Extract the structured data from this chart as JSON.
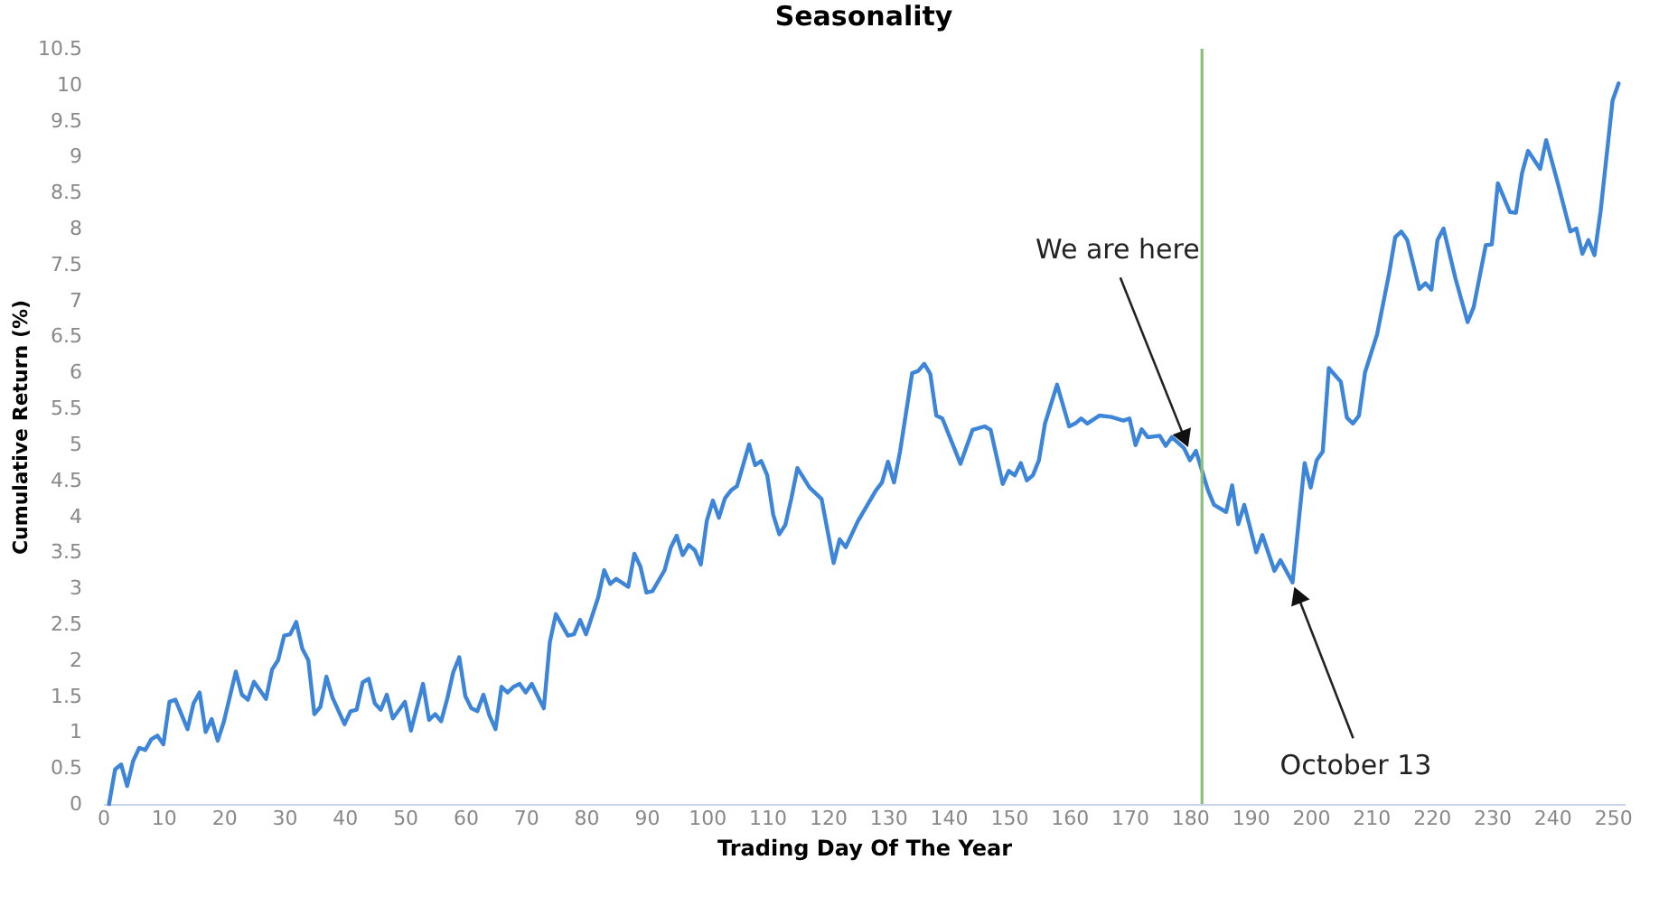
{
  "chart_data": {
    "type": "line",
    "title": "Seasonality",
    "xlabel": "Trading Day Of The Year",
    "ylabel": "Cumulative Return (%)",
    "x": [
      1,
      2,
      3,
      4,
      5,
      6,
      7,
      8,
      9,
      10,
      11,
      12,
      14,
      15,
      16,
      17,
      18,
      19,
      20,
      22,
      23,
      24,
      25,
      27,
      28,
      29,
      30,
      31,
      32,
      33,
      34,
      35,
      36,
      37,
      38,
      40,
      41,
      42,
      43,
      44,
      45,
      46,
      47,
      48,
      50,
      51,
      53,
      54,
      55,
      56,
      57,
      58,
      59,
      60,
      61,
      62,
      63,
      64,
      65,
      66,
      67,
      68,
      69,
      70,
      71,
      73,
      74,
      75,
      77,
      78,
      79,
      80,
      82,
      83,
      84,
      85,
      87,
      88,
      89,
      90,
      91,
      93,
      94,
      95,
      96,
      97,
      98,
      99,
      100,
      101,
      102,
      103,
      104,
      105,
      107,
      108,
      109,
      110,
      111,
      112,
      113,
      114,
      115,
      117,
      119,
      121,
      122,
      123,
      125,
      128,
      129,
      130,
      131,
      132,
      134,
      135,
      136,
      137,
      138,
      139,
      141,
      142,
      144,
      146,
      147,
      149,
      150,
      151,
      152,
      153,
      154,
      155,
      156,
      158,
      160,
      161,
      162,
      163,
      165,
      167,
      169,
      170,
      171,
      172,
      173,
      175,
      176,
      177,
      179,
      180,
      181,
      183,
      184,
      186,
      187,
      188,
      189,
      191,
      192,
      194,
      195,
      197,
      199,
      200,
      201,
      202,
      203,
      205,
      206,
      207,
      208,
      209,
      211,
      213,
      214,
      215,
      216,
      218,
      219,
      220,
      221,
      222,
      224,
      226,
      227,
      229,
      230,
      231,
      233,
      234,
      235,
      236,
      238,
      239,
      241,
      243,
      244,
      245,
      246,
      247,
      248,
      250,
      251
    ],
    "series": [
      {
        "color": "#3d85d8",
        "values": [
          0,
          0.48,
          0.55,
          0.25,
          0.6,
          0.78,
          0.75,
          0.9,
          0.95,
          0.83,
          1.42,
          1.45,
          1.04,
          1.4,
          1.55,
          1.0,
          1.18,
          0.88,
          1.14,
          1.84,
          1.52,
          1.45,
          1.7,
          1.46,
          1.87,
          2.0,
          2.34,
          2.36,
          2.53,
          2.16,
          2.0,
          1.25,
          1.35,
          1.77,
          1.48,
          1.11,
          1.29,
          1.31,
          1.69,
          1.74,
          1.4,
          1.31,
          1.52,
          1.19,
          1.42,
          1.02,
          1.67,
          1.17,
          1.25,
          1.15,
          1.46,
          1.83,
          2.04,
          1.5,
          1.33,
          1.29,
          1.52,
          1.23,
          1.04,
          1.63,
          1.55,
          1.63,
          1.67,
          1.55,
          1.67,
          1.33,
          2.25,
          2.64,
          2.34,
          2.36,
          2.56,
          2.36,
          2.87,
          3.25,
          3.06,
          3.13,
          3.02,
          3.48,
          3.3,
          2.94,
          2.96,
          3.25,
          3.56,
          3.73,
          3.46,
          3.6,
          3.53,
          3.33,
          3.94,
          4.22,
          3.98,
          4.25,
          4.36,
          4.42,
          5.0,
          4.71,
          4.77,
          4.57,
          4.02,
          3.75,
          3.88,
          4.25,
          4.67,
          4.4,
          4.24,
          3.35,
          3.68,
          3.57,
          3.93,
          4.36,
          4.47,
          4.76,
          4.47,
          4.9,
          5.99,
          6.02,
          6.12,
          5.98,
          5.4,
          5.36,
          4.94,
          4.73,
          5.2,
          5.25,
          5.2,
          4.45,
          4.63,
          4.57,
          4.74,
          4.5,
          4.57,
          4.78,
          5.29,
          5.83,
          5.25,
          5.29,
          5.36,
          5.29,
          5.4,
          5.38,
          5.33,
          5.36,
          4.99,
          5.21,
          5.1,
          5.12,
          4.98,
          5.1,
          4.95,
          4.78,
          4.91,
          4.36,
          4.16,
          4.06,
          4.43,
          3.89,
          4.16,
          3.5,
          3.74,
          3.24,
          3.39,
          3.08,
          4.74,
          4.4,
          4.78,
          4.9,
          6.06,
          5.87,
          5.37,
          5.29,
          5.4,
          6.0,
          6.53,
          7.38,
          7.88,
          7.96,
          7.84,
          7.16,
          7.24,
          7.15,
          7.84,
          8.0,
          7.3,
          6.7,
          6.91,
          7.77,
          7.78,
          8.63,
          8.23,
          8.22,
          8.77,
          9.08,
          8.83,
          9.23,
          8.61,
          7.96,
          8.0,
          7.65,
          7.84,
          7.63,
          8.23,
          9.78,
          10.02
        ]
      }
    ],
    "xlim": [
      0,
      252
    ],
    "xticks": [
      0,
      10,
      20,
      30,
      40,
      50,
      60,
      70,
      80,
      90,
      100,
      110,
      120,
      130,
      140,
      150,
      160,
      170,
      180,
      190,
      200,
      210,
      220,
      230,
      240,
      250
    ],
    "ylim": [
      0,
      10.5
    ],
    "yticks": [
      0,
      0.5,
      1,
      1.5,
      2,
      2.5,
      3,
      3.5,
      4,
      4.5,
      5,
      5.5,
      6,
      6.5,
      7,
      7.5,
      8,
      8.5,
      9,
      9.5,
      10,
      10.5
    ],
    "grid": false,
    "marker": "none",
    "line_style": "solid",
    "ref_lines": [
      {
        "axis": "x",
        "value": 182,
        "color": "#8cbf7a",
        "line_style": "solid"
      }
    ],
    "annotations": [
      {
        "text": "We are here",
        "x": 180,
        "y": 4.9
      },
      {
        "text": "October 13",
        "x": 197,
        "y": 3.08
      }
    ]
  }
}
